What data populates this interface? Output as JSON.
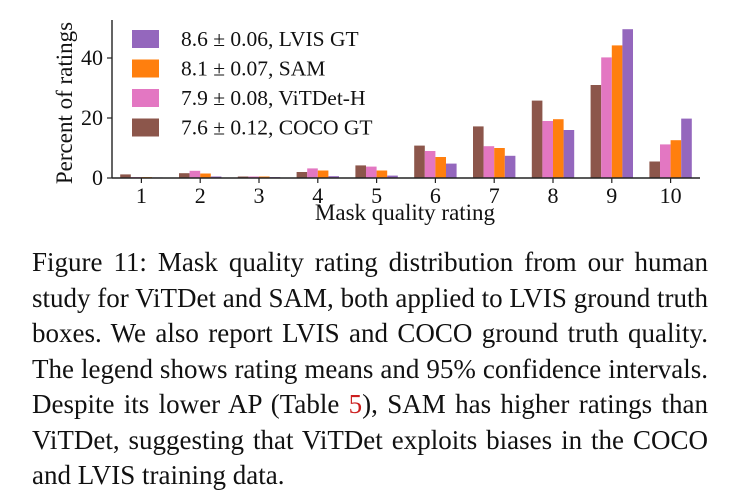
{
  "chart_data": {
    "type": "bar",
    "title": "",
    "xlabel": "Mask quality rating",
    "ylabel": "Percent of ratings",
    "categories": [
      "1",
      "2",
      "3",
      "4",
      "5",
      "6",
      "7",
      "8",
      "9",
      "10"
    ],
    "ylim": [
      0,
      52
    ],
    "yticks": [
      "0",
      "20",
      "40"
    ],
    "grid": false,
    "legend_position": "top-left",
    "series": [
      {
        "name": "COCO GT",
        "legend": "7.6 ± 0.12, COCO GT",
        "color": "#8c564b",
        "values": [
          1.2,
          1.6,
          0.5,
          2.0,
          4.2,
          10.8,
          17.2,
          25.8,
          31.0,
          5.5
        ]
      },
      {
        "name": "ViTDet-H",
        "legend": "7.9 ± 0.08, ViTDet-H",
        "color": "#e377c2",
        "values": [
          0.3,
          2.4,
          0.5,
          3.2,
          3.8,
          9.0,
          10.6,
          19.0,
          40.2,
          11.2
        ]
      },
      {
        "name": "SAM",
        "legend": "8.1 ± 0.07, SAM",
        "color": "#ff7f0e",
        "values": [
          0.3,
          1.5,
          0.5,
          2.5,
          2.5,
          7.0,
          10.0,
          19.6,
          44.2,
          12.6
        ]
      },
      {
        "name": "LVIS GT",
        "legend": "8.6 ± 0.06, LVIS GT",
        "color": "#9467bd",
        "values": [
          0.2,
          0.5,
          0.3,
          0.6,
          0.8,
          4.8,
          7.4,
          16.0,
          49.6,
          19.8
        ]
      }
    ],
    "legend_order": [
      "LVIS GT",
      "SAM",
      "ViTDet-H",
      "COCO GT"
    ]
  },
  "caption": {
    "label": "Figure 11:",
    "text_before_ref": " Mask quality rating distribution from our human study for ViTDet and SAM, both applied to LVIS ground truth boxes. We also report LVIS and COCO ground truth quality. The legend shows rating means and 95% confidence intervals. Despite its lower AP (Table ",
    "ref": "5",
    "text_after_ref": "), SAM has higher ratings than ViTDet, suggesting that ViTDet exploits biases in the COCO and LVIS training data."
  }
}
